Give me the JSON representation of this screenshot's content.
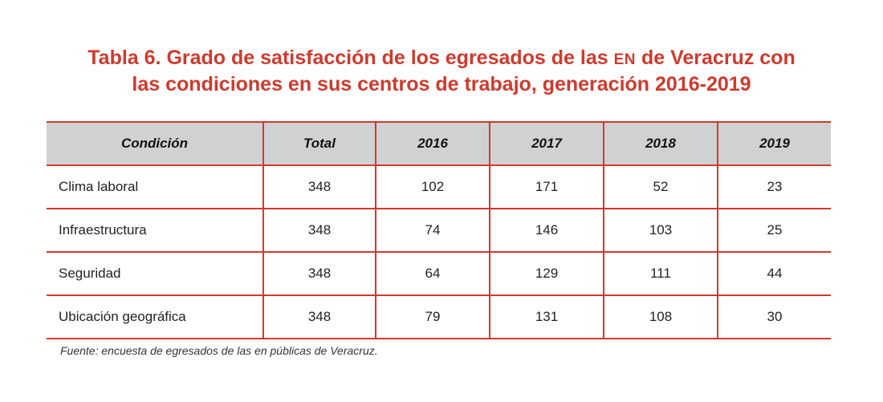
{
  "title": {
    "line1_before": "Tabla 6. Grado de satisfacción de los egresados de las ",
    "line1_sc": "EN",
    "line1_after": " de Veracruz con",
    "line2": "las condiciones en sus centros de trabajo, generación 2016-2019"
  },
  "table": {
    "headers": [
      "Condición",
      "Total",
      "2016",
      "2017",
      "2018",
      "2019"
    ],
    "rows": [
      [
        "Clima laboral",
        "348",
        "102",
        "171",
        "52",
        "23"
      ],
      [
        "Infraestructura",
        "348",
        "74",
        "146",
        "103",
        "25"
      ],
      [
        "Seguridad",
        "348",
        "64",
        "129",
        "111",
        "44"
      ],
      [
        "Ubicación geográfica",
        "348",
        "79",
        "131",
        "108",
        "30"
      ]
    ]
  },
  "source": "Fuente: encuesta de egresados de las en públicas de Veracruz.",
  "colors": {
    "accent": "#cf3a2d",
    "header_bg": "#d0d1d3"
  }
}
